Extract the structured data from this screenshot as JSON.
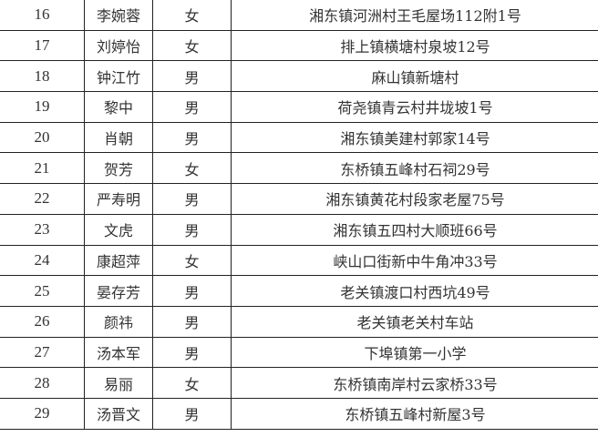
{
  "rows": [
    {
      "no": "16",
      "name": "李婉蓉",
      "gender": "女",
      "address": "湘东镇河洲村王毛屋场112附1号"
    },
    {
      "no": "17",
      "name": "刘婷怡",
      "gender": "女",
      "address": "排上镇横塘村泉坡12号"
    },
    {
      "no": "18",
      "name": "钟江竹",
      "gender": "男",
      "address": "麻山镇新塘村"
    },
    {
      "no": "19",
      "name": "黎中",
      "gender": "男",
      "address": "荷尧镇青云村井垅坡1号"
    },
    {
      "no": "20",
      "name": "肖朝",
      "gender": "男",
      "address": "湘东镇美建村郭家14号"
    },
    {
      "no": "21",
      "name": "贺芳",
      "gender": "女",
      "address": "东桥镇五峰村石祠29号"
    },
    {
      "no": "22",
      "name": "严寿明",
      "gender": "男",
      "address": "湘东镇黄花村段家老屋75号"
    },
    {
      "no": "23",
      "name": "文虎",
      "gender": "男",
      "address": "湘东镇五四村大顺班66号"
    },
    {
      "no": "24",
      "name": "康超萍",
      "gender": "女",
      "address": "峡山口街新中牛角冲33号"
    },
    {
      "no": "25",
      "name": "晏存芳",
      "gender": "男",
      "address": "老关镇渡口村西坑49号"
    },
    {
      "no": "26",
      "name": "颜祎",
      "gender": "男",
      "address": "老关镇老关村车站"
    },
    {
      "no": "27",
      "name": "汤本军",
      "gender": "男",
      "address": "下埠镇第一小学"
    },
    {
      "no": "28",
      "name": "易丽",
      "gender": "女",
      "address": "东桥镇南岸村云家桥33号"
    },
    {
      "no": "29",
      "name": "汤晋文",
      "gender": "男",
      "address": "东桥镇五峰村新屋3号"
    }
  ]
}
